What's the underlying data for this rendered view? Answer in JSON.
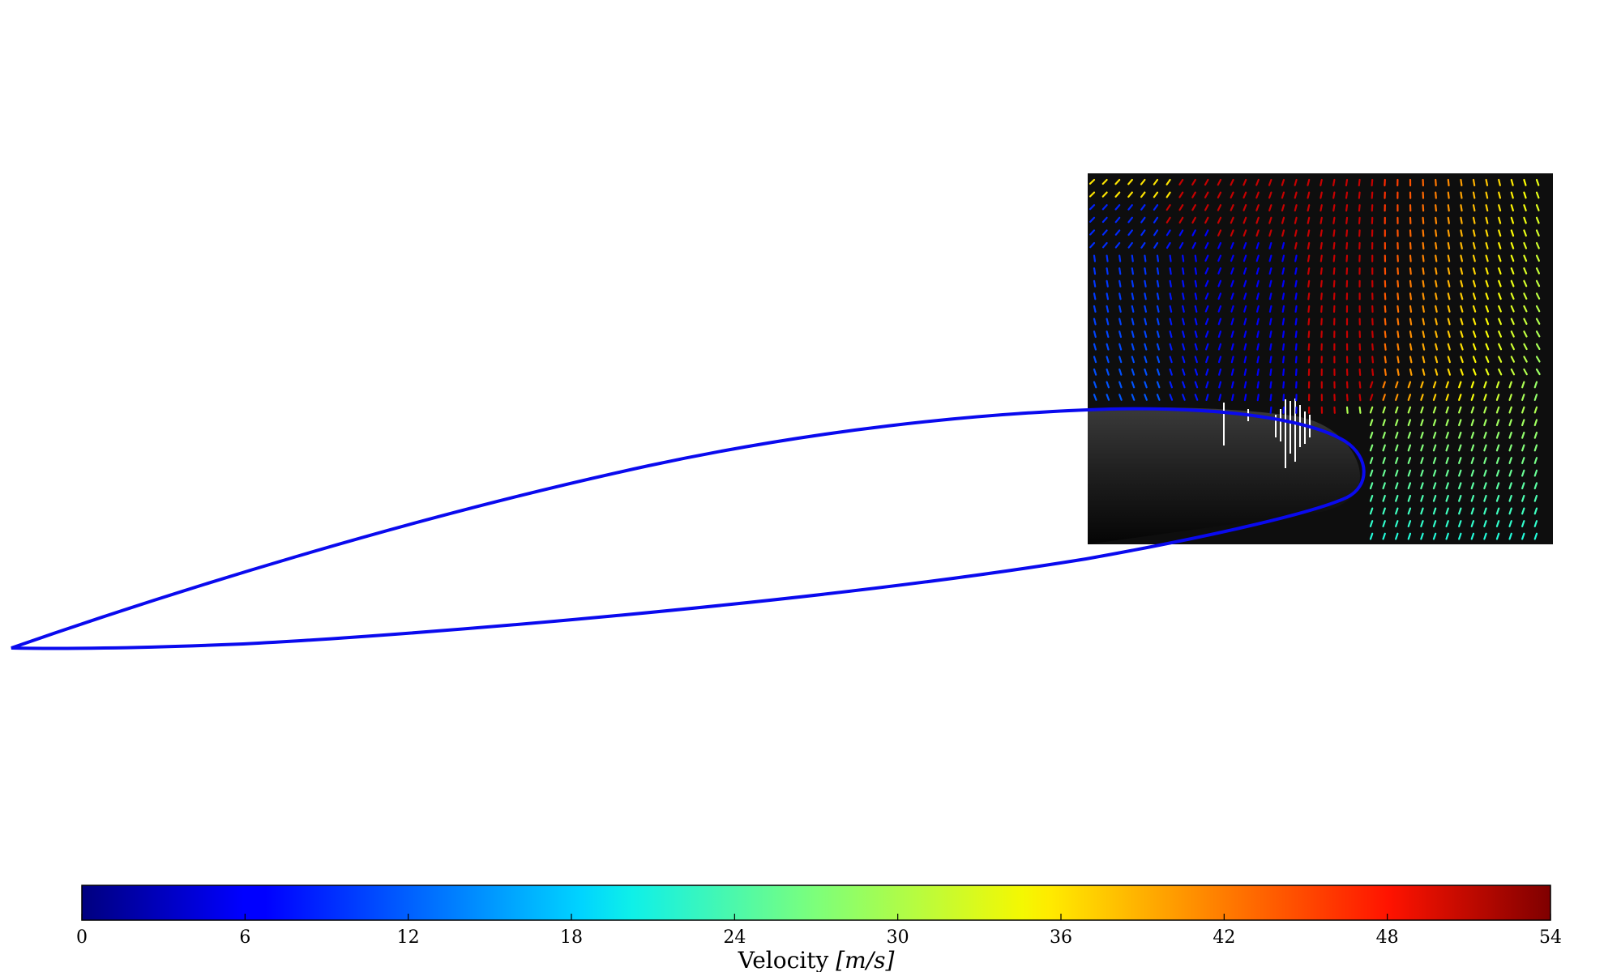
{
  "figure": {
    "colorbar": {
      "label_prefix": "Velocity ",
      "label_unit": "[m/s]",
      "min": 0,
      "max": 54,
      "colormap": "jet",
      "ticks": [
        {
          "value": 0,
          "label": "0"
        },
        {
          "value": 6,
          "label": "6"
        },
        {
          "value": 12,
          "label": "12"
        },
        {
          "value": 18,
          "label": "18"
        },
        {
          "value": 24,
          "label": "24"
        },
        {
          "value": 30,
          "label": "30"
        },
        {
          "value": 36,
          "label": "36"
        },
        {
          "value": 42,
          "label": "42"
        },
        {
          "value": 48,
          "label": "48"
        },
        {
          "value": 54,
          "label": "54"
        }
      ]
    },
    "colors": {
      "airfoil_outline": "#0a0aee",
      "piv_background": "#111111",
      "page_background": "#ffffff"
    }
  }
}
